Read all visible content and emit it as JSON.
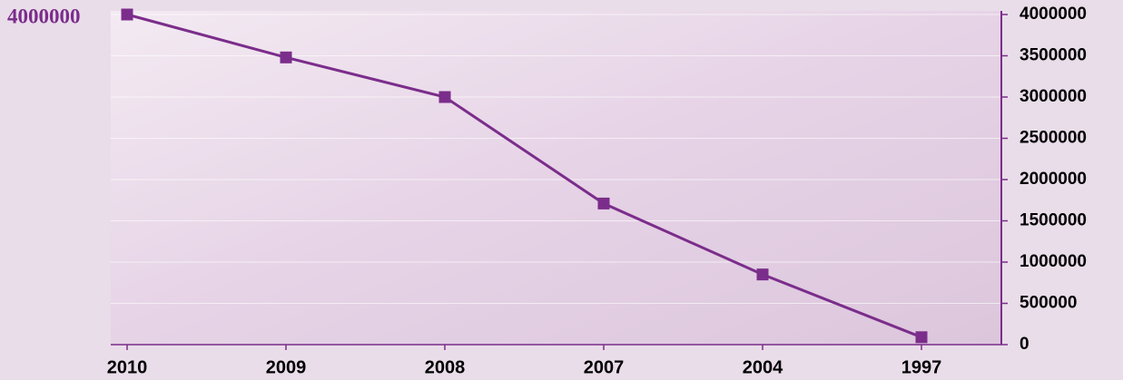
{
  "chart_data": {
    "type": "line",
    "annotation": "4000000",
    "categories": [
      "2010",
      "2009",
      "2008",
      "2007",
      "2004",
      "1997"
    ],
    "values": [
      4000000,
      3480000,
      3000000,
      1710000,
      850000,
      90000
    ],
    "color": "#7b2d8b",
    "marker": "square",
    "ylim": [
      0,
      4000000
    ],
    "yticks": [
      0,
      500000,
      1000000,
      1500000,
      2000000,
      2500000,
      3000000,
      3500000,
      4000000
    ],
    "yaxis_side": "right",
    "grid": true
  }
}
